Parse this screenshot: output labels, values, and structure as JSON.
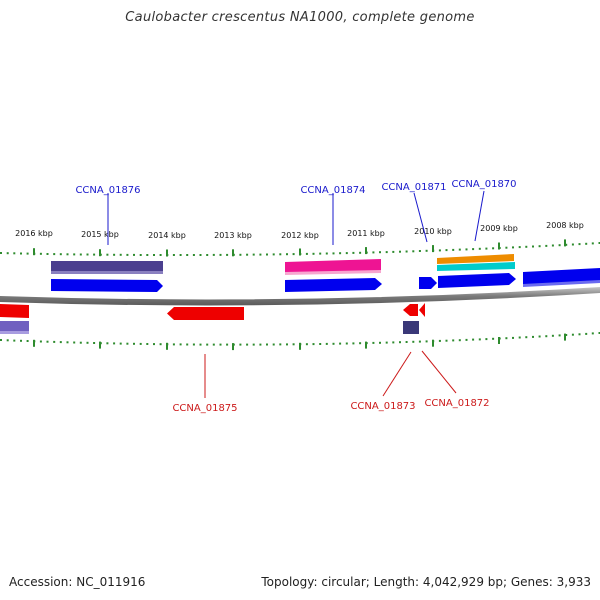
{
  "title": "Caulobacter crescentus NA1000, complete genome",
  "footer": {
    "accession": "Accession: NC_011916",
    "summary": "Topology: circular; Length: 4,042,929 bp; Genes: 3,933"
  },
  "colors": {
    "backbone": "#808080",
    "tick": "#2e8b2e",
    "label_top": "#1a1acc",
    "label_bottom": "#cc1a1a",
    "cds_forward": "#0000ee",
    "cds_reverse": "#ee0000",
    "ring_purple": "#4b3f8f",
    "ring_pink": "#ee1493",
    "ring_orange": "#ee8c00",
    "ring_cyan": "#00cccc",
    "ring_lavender": "#7060c0"
  },
  "scale": {
    "labels": [
      "2016 kbp",
      "2015 kbp",
      "2014 kbp",
      "2013 kbp",
      "2012 kbp",
      "2011 kbp",
      "2010 kbp",
      "2009 kbp",
      "2008 kbp"
    ]
  },
  "genes_top": [
    {
      "id": "CCNA_01876"
    },
    {
      "id": "CCNA_01874"
    },
    {
      "id": "CCNA_01871"
    },
    {
      "id": "CCNA_01870"
    }
  ],
  "genes_bottom": [
    {
      "id": "CCNA_01875"
    },
    {
      "id": "CCNA_01873"
    },
    {
      "id": "CCNA_01872"
    }
  ]
}
